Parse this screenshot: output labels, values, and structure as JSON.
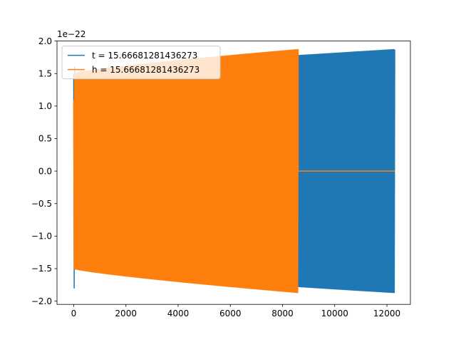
{
  "chart_data": {
    "type": "line",
    "title": "",
    "xlabel": "",
    "ylabel": "",
    "offset_text": "1e−22",
    "xlim": [
      -640,
      12900
    ],
    "ylim": [
      -2.05,
      2.0
    ],
    "xticks": [
      0,
      2000,
      4000,
      6000,
      8000,
      10000,
      12000
    ],
    "xtick_labels": [
      "0",
      "2000",
      "4000",
      "6000",
      "8000",
      "10000",
      "12000"
    ],
    "yticks": [
      -2.0,
      -1.5,
      -1.0,
      -0.5,
      0.0,
      0.5,
      1.0,
      1.5,
      2.0
    ],
    "ytick_labels": [
      "−2.0",
      "−1.5",
      "−1.0",
      "−0.5",
      "0.0",
      "0.5",
      "1.0",
      "1.5",
      "2.0"
    ],
    "grid": false,
    "legend_position": "upper-left",
    "series": [
      {
        "name": "t = 15.66681281436273",
        "color": "#1f77b4",
        "description_values": {
          "x_start": 0,
          "x_end": 12300,
          "amplitude_start": 1.5,
          "amplitude_end": 1.87,
          "initial_min": -1.8,
          "initial_max": 1.6
        }
      },
      {
        "name": "h = 15.66681281436273",
        "color": "#ff7f0e",
        "description_values": {
          "x_start": 0,
          "x_oscillation_end": 8600,
          "x_end": 12300,
          "amplitude_start": 1.5,
          "amplitude_end": 1.87,
          "flat_value": 0.0
        }
      }
    ]
  }
}
